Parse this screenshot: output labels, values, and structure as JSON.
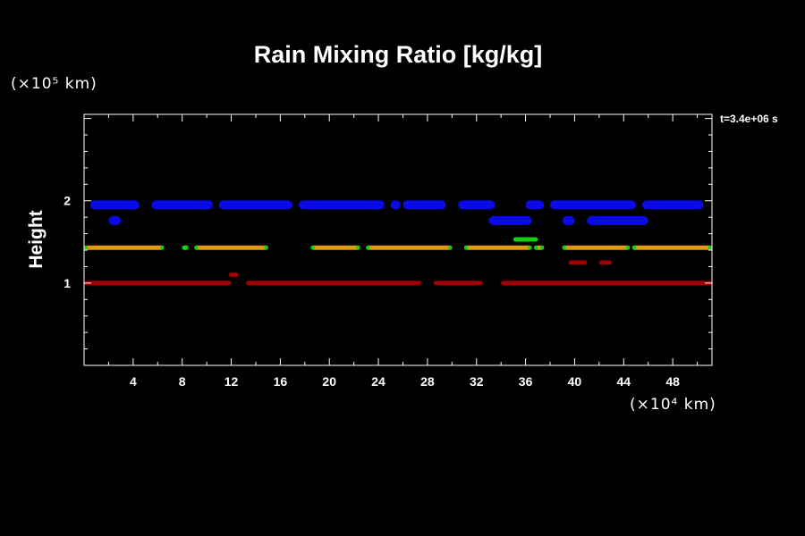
{
  "header": {
    "title": "Rain Mixing Ratio [kg/kg]",
    "timestamp": "t=3.4e+06 s"
  },
  "axes": {
    "ylabel": "Height",
    "yunit": "(×10⁵ km)",
    "xunit": "(×10⁴ km)"
  },
  "chart_data": {
    "type": "heatmap",
    "title": "Rain Mixing Ratio [kg/kg]",
    "ylabel": "Height",
    "xlabel": "",
    "x_tick_labels": [
      "4",
      "8",
      "12",
      "16",
      "20",
      "24",
      "28",
      "32",
      "36",
      "40",
      "44",
      "48"
    ],
    "y_tick_labels": [
      "1",
      "2"
    ],
    "xlim": [
      0,
      51.2
    ],
    "ylim": [
      0,
      3.05
    ],
    "grid": false,
    "colors": {
      "blue": "#0a0ae6",
      "green": "#10d010",
      "yellow": "#d4cc10",
      "orange": "#e09a10",
      "red": "#a00000"
    },
    "series": [
      {
        "color": "blue",
        "y": 1.95,
        "segments": [
          [
            0.5,
            4.5
          ],
          [
            5.5,
            10.5
          ],
          [
            11,
            17
          ],
          [
            17.5,
            24.5
          ],
          [
            25,
            25.8
          ],
          [
            26,
            29.5
          ],
          [
            30.5,
            33.5
          ],
          [
            36,
            37.5
          ],
          [
            38,
            45
          ],
          [
            45.5,
            50.5
          ]
        ]
      },
      {
        "color": "blue",
        "y": 1.76,
        "segments": [
          [
            2,
            3
          ],
          [
            33,
            36.5
          ],
          [
            39,
            40
          ],
          [
            41,
            46
          ]
        ]
      },
      {
        "color": "orange",
        "y": 1.43,
        "segments": [
          [
            0,
            6.5
          ],
          [
            8,
            8.5
          ],
          [
            9,
            15
          ],
          [
            18.5,
            22.5
          ],
          [
            23,
            30
          ],
          [
            31,
            36.5
          ],
          [
            36.7,
            37.5
          ],
          [
            39,
            44.5
          ],
          [
            44.7,
            51.2
          ]
        ]
      },
      {
        "color": "green",
        "y": 1.53,
        "segments": [
          [
            35,
            37
          ]
        ]
      },
      {
        "color": "red",
        "y": 1.25,
        "segments": [
          [
            39.5,
            41
          ],
          [
            42,
            43
          ]
        ]
      },
      {
        "color": "red",
        "y": 1.1,
        "segments": [
          [
            11.8,
            12.6
          ]
        ]
      },
      {
        "color": "red",
        "y": 1.0,
        "segments": [
          [
            0,
            12
          ],
          [
            13.2,
            27.5
          ],
          [
            28.5,
            32.5
          ],
          [
            34,
            51.2
          ]
        ]
      }
    ]
  }
}
